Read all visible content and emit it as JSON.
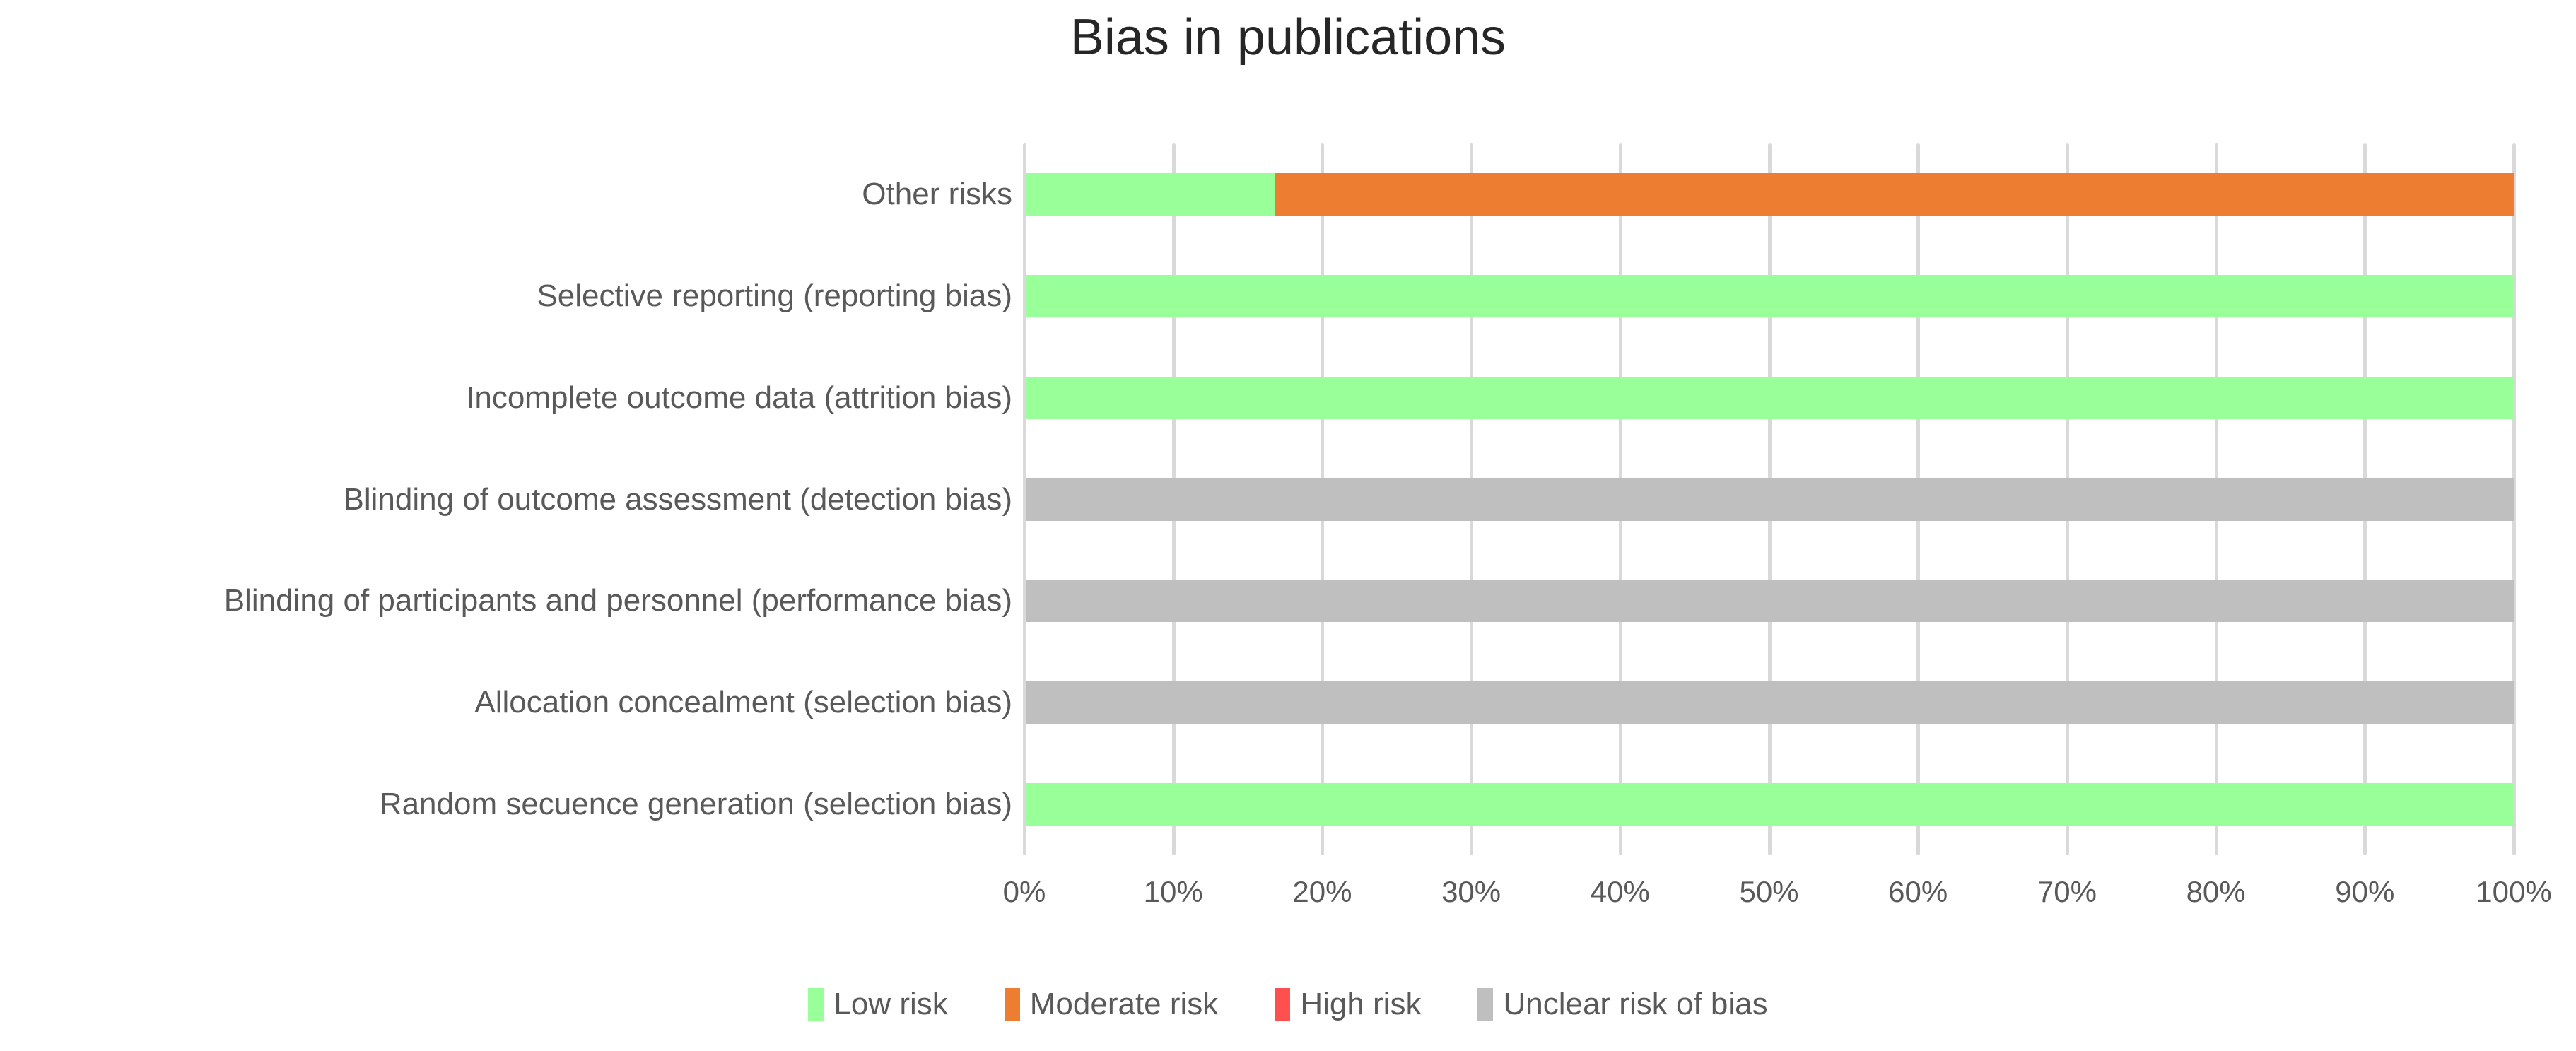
{
  "title": "Bias in publications",
  "colors": {
    "low_risk": "#99FF99",
    "moderate_risk": "#ED7D31",
    "high_risk": "#FF5050",
    "unclear_risk": "#BFBFBF",
    "gridline": "#D9D9D9",
    "axis_text": "#595959",
    "title_text": "#262626",
    "background": "#FFFFFF"
  },
  "chart_data": {
    "type": "bar",
    "orientation": "horizontal",
    "stacked": true,
    "title": "Bias in publications",
    "xlabel": "",
    "ylabel": "",
    "grid": true,
    "legend_position": "bottom",
    "categories": [
      "Other risks",
      "Selective reporting (reporting bias)",
      "Incomplete outcome data (attrition bias)",
      "Blinding of outcome assessment (detection bias)",
      "Blinding of participants and personnel (performance bias)",
      "Allocation concealment (selection bias)",
      "Random secuence generation (selection bias)"
    ],
    "series": [
      {
        "name": "Low risk",
        "color": "#99FF99",
        "values": [
          16.7,
          100,
          100,
          0,
          0,
          0,
          100
        ]
      },
      {
        "name": "Moderate risk",
        "color": "#ED7D31",
        "values": [
          83.3,
          0,
          0,
          0,
          0,
          0,
          0
        ]
      },
      {
        "name": "High risk",
        "color": "#FF5050",
        "values": [
          0,
          0,
          0,
          0,
          0,
          0,
          0
        ]
      },
      {
        "name": "Unclear risk of bias",
        "color": "#BFBFBF",
        "values": [
          0,
          0,
          0,
          100,
          100,
          100,
          0
        ]
      }
    ],
    "x_axis": {
      "min": 0,
      "max": 100,
      "tick_labels": [
        "0%",
        "10%",
        "20%",
        "30%",
        "40%",
        "50%",
        "60%",
        "70%",
        "80%",
        "90%",
        "100%"
      ]
    }
  }
}
